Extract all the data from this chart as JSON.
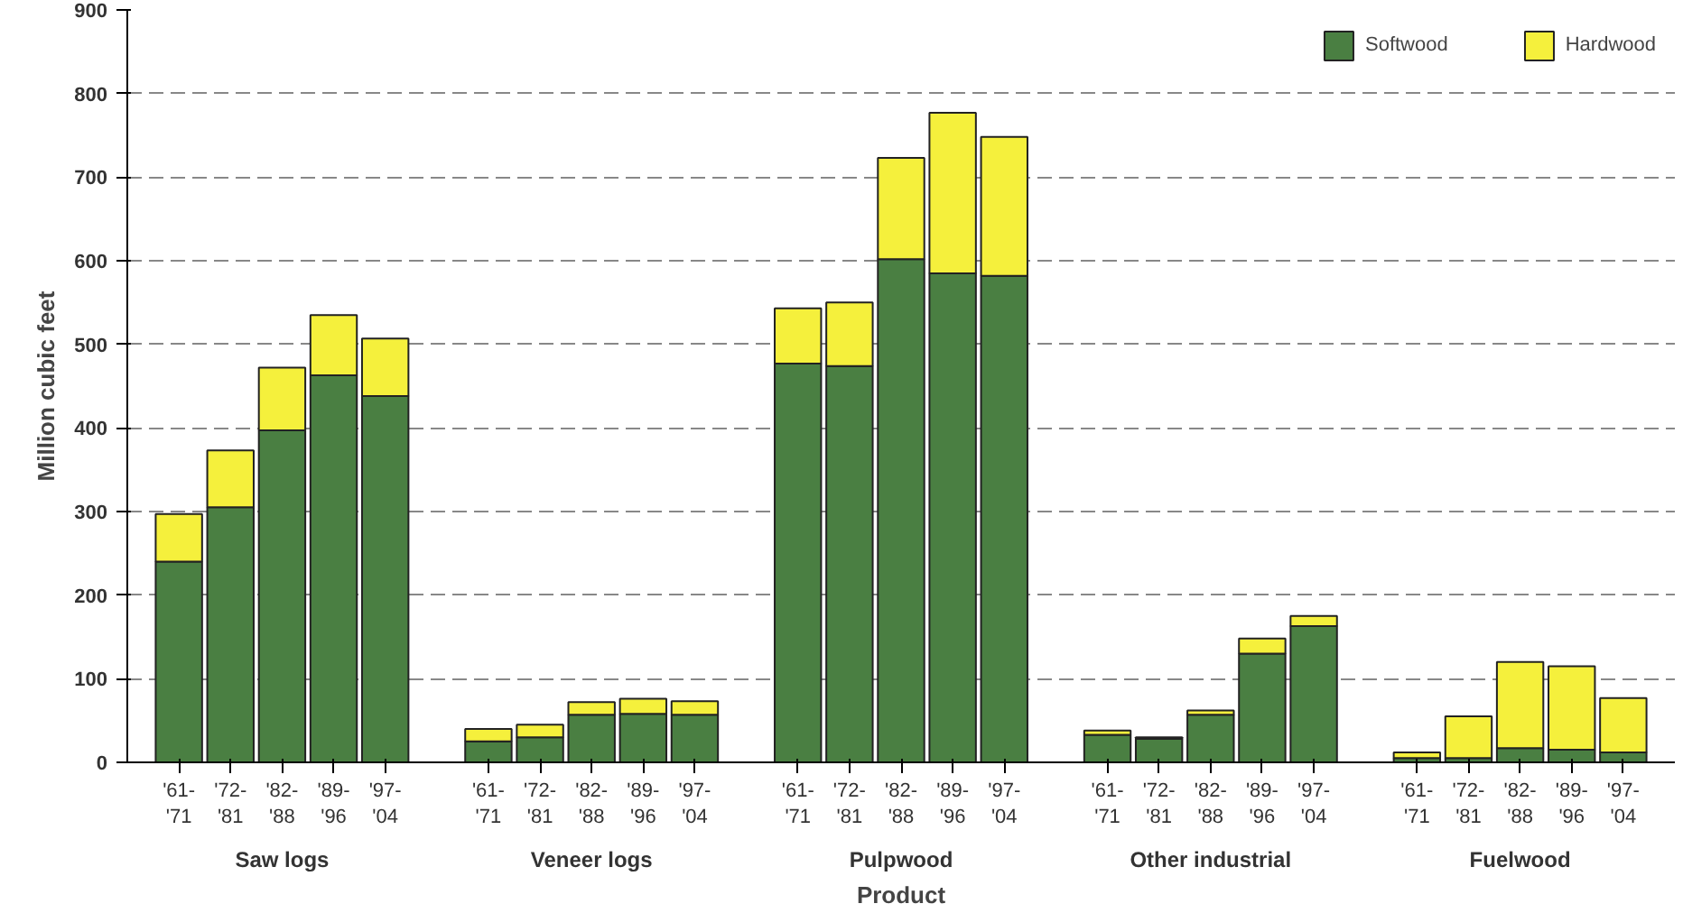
{
  "chart_data": {
    "type": "bar",
    "stacked": true,
    "xlabel": "Product",
    "ylabel": "Million cubic feet",
    "categories": [
      "'61-'71",
      "'72-'81",
      "'82-'88",
      "'89-'96",
      "'97-'04",
      "'61-'71",
      "'72-'81",
      "'82-'88",
      "'89-'96",
      "'97-'04",
      "'61-'71",
      "'72-'81",
      "'82-'88",
      "'89-'96",
      "'97-'04",
      "'61-'71",
      "'72-'81",
      "'82-'88",
      "'89-'96",
      "'97-'04",
      "'61-'71",
      "'72-'81",
      "'82-'88",
      "'89-'96",
      "'97-'04"
    ],
    "series": [
      {
        "name": "Softwood",
        "color": "#4a7f42",
        "values": [
          240,
          305,
          397,
          463,
          438,
          25,
          30,
          57,
          58,
          57,
          477,
          474,
          602,
          585,
          582,
          33,
          28,
          57,
          130,
          163,
          5,
          5,
          17,
          15,
          12
        ]
      },
      {
        "name": "Hardwood",
        "color": "#f5f03c",
        "values": [
          57,
          68,
          75,
          72,
          69,
          15,
          15,
          15,
          18,
          16,
          66,
          76,
          121,
          192,
          166,
          5,
          2,
          5,
          18,
          12,
          7,
          50,
          103,
          100,
          65
        ]
      }
    ],
    "annotations": [
      "Saw logs",
      "Veneer logs",
      "Pulpwood",
      "Other industrial",
      "Fuelwood"
    ],
    "ylim": [
      0,
      900
    ],
    "yticks": [
      0,
      100,
      200,
      300,
      400,
      500,
      600,
      700,
      800,
      900
    ],
    "grid": "y",
    "legend": "top right"
  }
}
